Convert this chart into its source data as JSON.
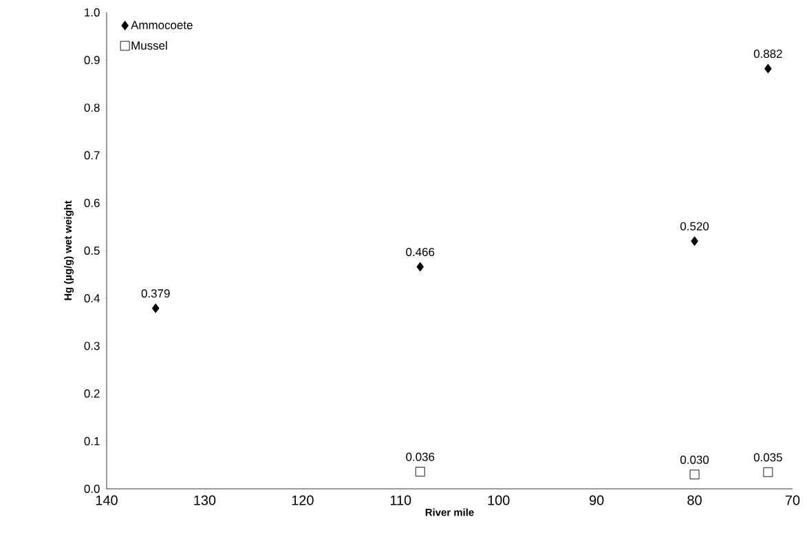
{
  "chart_data": {
    "type": "scatter",
    "xlabel": "River mile",
    "ylabel": "Hg (µg/g) wet weight",
    "xlim": [
      140,
      70
    ],
    "xticks": [
      140,
      130,
      120,
      110,
      100,
      90,
      80,
      70
    ],
    "ylim": [
      0,
      1
    ],
    "yticks": [
      {
        "value": 0,
        "label": "0.0"
      },
      {
        "value": 0.1,
        "label": "0.1"
      },
      {
        "value": 0.2,
        "label": "0.2"
      },
      {
        "value": 0.3,
        "label": "0.3"
      },
      {
        "value": 0.4,
        "label": "0.4"
      },
      {
        "value": 0.5,
        "label": "0.5"
      },
      {
        "value": 0.6,
        "label": "0.6"
      },
      {
        "value": 0.7,
        "label": "0.7"
      },
      {
        "value": 0.8,
        "label": "0.8"
      },
      {
        "value": 0.9,
        "label": "0.9"
      },
      {
        "value": 1,
        "label": "1.0"
      }
    ],
    "grid": false,
    "legend": "top left",
    "series": [
      {
        "name": "Ammocoete",
        "color": "#000000",
        "marker": "diamond",
        "x": [
          135,
          108,
          80,
          72.5
        ],
        "values": [
          0.379,
          0.466,
          0.52,
          0.882
        ],
        "value_labels": [
          "0.379",
          "0.466",
          "0.520",
          "0.882"
        ]
      },
      {
        "name": "Mussel",
        "color": "#000000",
        "marker": "square",
        "x": [
          108,
          80,
          72.5
        ],
        "values": [
          0.036,
          0.03,
          0.035
        ],
        "value_labels": [
          "0.036",
          "0.030",
          "0.035"
        ]
      }
    ]
  }
}
